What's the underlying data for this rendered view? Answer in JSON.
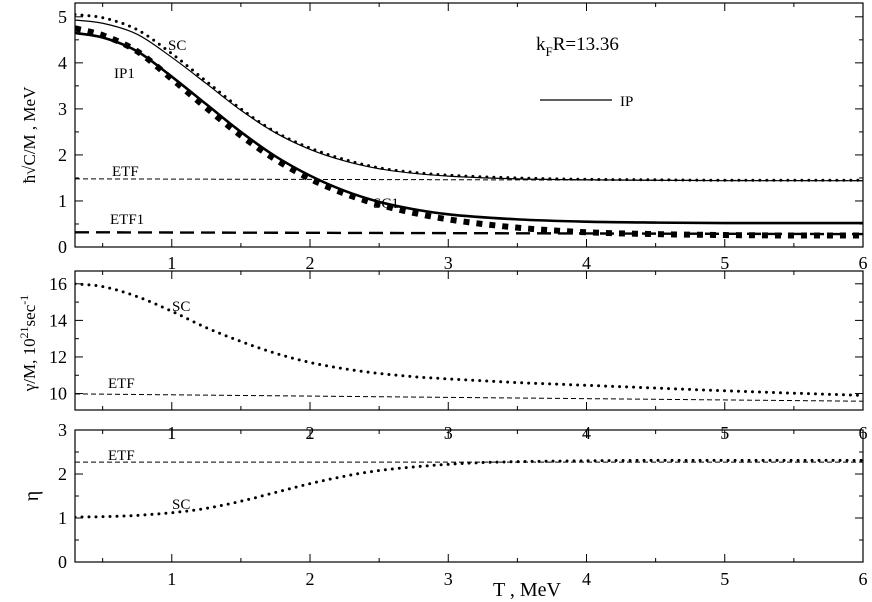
{
  "chart_data": [
    {
      "type": "line",
      "panel": "top",
      "ylabel": "ħ√C/M , MeV",
      "xlim": [
        0.3,
        6
      ],
      "ylim": [
        0,
        5.3
      ],
      "xticks": [
        "1",
        "2",
        "3",
        "4",
        "5",
        "6"
      ],
      "yticks": [
        "0",
        "1",
        "2",
        "3",
        "4",
        "5"
      ],
      "grid": false,
      "annotations": [
        {
          "text": "k",
          "sub": "F",
          "rest": "R=13.36"
        },
        {
          "text": "SC"
        },
        {
          "text": "IP1"
        },
        {
          "text": "ETF"
        },
        {
          "text": "ETF1"
        },
        {
          "text": "SC1"
        },
        {
          "text": "IP"
        }
      ],
      "series": [
        {
          "name": "SC",
          "style": "dotted",
          "x": [
            0.3,
            0.5,
            0.75,
            1,
            1.25,
            1.5,
            1.75,
            2,
            2.25,
            2.5,
            2.75,
            3,
            3.5,
            4,
            4.5,
            5,
            5.5,
            6
          ],
          "y": [
            5.05,
            4.98,
            4.72,
            4.2,
            3.6,
            3.0,
            2.5,
            2.15,
            1.9,
            1.72,
            1.62,
            1.56,
            1.5,
            1.47,
            1.46,
            1.45,
            1.45,
            1.45
          ]
        },
        {
          "name": "IP",
          "style": "solid-thin",
          "x": [
            0.3,
            0.5,
            0.75,
            1,
            1.25,
            1.5,
            1.75,
            2,
            2.25,
            2.5,
            2.75,
            3,
            3.5,
            4,
            4.5,
            5,
            5.5,
            6
          ],
          "y": [
            4.93,
            4.86,
            4.62,
            4.12,
            3.55,
            2.97,
            2.48,
            2.12,
            1.87,
            1.7,
            1.6,
            1.54,
            1.48,
            1.46,
            1.45,
            1.44,
            1.44,
            1.44
          ]
        },
        {
          "name": "IP1",
          "style": "solid-thick",
          "x": [
            0.3,
            0.5,
            0.75,
            1,
            1.25,
            1.5,
            1.75,
            2,
            2.25,
            2.5,
            2.75,
            3,
            3.5,
            4,
            4.5,
            5,
            5.5,
            6
          ],
          "y": [
            4.65,
            4.55,
            4.25,
            3.7,
            3.1,
            2.5,
            1.97,
            1.55,
            1.22,
            0.98,
            0.82,
            0.71,
            0.6,
            0.55,
            0.53,
            0.52,
            0.52,
            0.52
          ]
        },
        {
          "name": "SC1",
          "style": "dotted-thick",
          "x": [
            0.3,
            0.5,
            0.75,
            1,
            1.25,
            1.5,
            1.75,
            2,
            2.25,
            2.5,
            2.75,
            3,
            3.5,
            4,
            4.5,
            5,
            5.5,
            6
          ],
          "y": [
            4.75,
            4.6,
            4.25,
            3.65,
            3.02,
            2.42,
            1.9,
            1.48,
            1.16,
            0.92,
            0.74,
            0.6,
            0.42,
            0.32,
            0.28,
            0.26,
            0.25,
            0.25
          ]
        },
        {
          "name": "ETF",
          "style": "dashed-thin",
          "x": [
            0.3,
            6
          ],
          "y": [
            1.48,
            1.44
          ]
        },
        {
          "name": "ETF1",
          "style": "dashed-thick",
          "x": [
            0.3,
            6
          ],
          "y": [
            0.32,
            0.28
          ]
        }
      ]
    },
    {
      "type": "line",
      "panel": "middle",
      "ylabel": "γ/M, 10",
      "ylabel_sup1": "21",
      "ylabel_mid": "sec",
      "ylabel_sup2": "-1",
      "xlim": [
        0.3,
        6
      ],
      "ylim": [
        9.1,
        16.7
      ],
      "xticks": [
        "1",
        "2",
        "3",
        "4",
        "5",
        "6"
      ],
      "yticks": [
        "10",
        "12",
        "14",
        "16"
      ],
      "grid": false,
      "annotations": [
        {
          "text": "SC"
        },
        {
          "text": "ETF"
        }
      ],
      "series": [
        {
          "name": "SC",
          "style": "dotted",
          "x": [
            0.3,
            0.5,
            0.75,
            1,
            1.25,
            1.5,
            1.75,
            2,
            2.25,
            2.5,
            2.75,
            3,
            3.5,
            4,
            4.5,
            5,
            5.5,
            6
          ],
          "y": [
            16.0,
            15.85,
            15.3,
            14.5,
            13.6,
            12.85,
            12.2,
            11.7,
            11.35,
            11.1,
            10.92,
            10.8,
            10.6,
            10.45,
            10.3,
            10.15,
            10.02,
            9.9
          ]
        },
        {
          "name": "ETF",
          "style": "dashed-thin",
          "x": [
            0.3,
            6
          ],
          "y": [
            9.98,
            9.58
          ]
        }
      ]
    },
    {
      "type": "line",
      "panel": "bottom",
      "ylabel": "η",
      "xlabel": "T , MeV",
      "xlim": [
        0.3,
        6
      ],
      "ylim": [
        0,
        3
      ],
      "xticks": [
        "1",
        "2",
        "3",
        "4",
        "5",
        "6"
      ],
      "yticks": [
        "0",
        "1",
        "2",
        "3"
      ],
      "grid": false,
      "annotations": [
        {
          "text": "ETF"
        },
        {
          "text": "SC"
        }
      ],
      "series": [
        {
          "name": "SC",
          "style": "dotted",
          "x": [
            0.3,
            0.5,
            0.75,
            1,
            1.25,
            1.5,
            1.75,
            2,
            2.25,
            2.5,
            2.75,
            3,
            3.25,
            3.5,
            4,
            4.5,
            5,
            5.5,
            6
          ],
          "y": [
            1.02,
            1.03,
            1.06,
            1.12,
            1.22,
            1.38,
            1.58,
            1.78,
            1.95,
            2.08,
            2.16,
            2.22,
            2.26,
            2.28,
            2.3,
            2.31,
            2.31,
            2.31,
            2.31
          ]
        },
        {
          "name": "ETF",
          "style": "dashed-thin",
          "x": [
            0.3,
            6
          ],
          "y": [
            2.27,
            2.27
          ]
        }
      ]
    }
  ]
}
